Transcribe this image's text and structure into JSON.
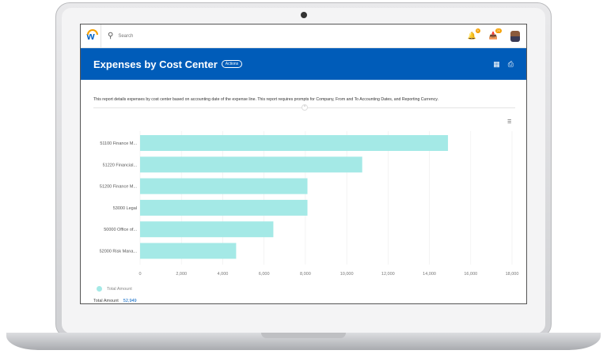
{
  "topbar": {
    "search_placeholder": "Search",
    "notification_count": "9",
    "inbox_count": "20"
  },
  "header": {
    "title": "Expenses by Cost Center",
    "actions_label": "Actions"
  },
  "description": "This report details expenses by cost center based on accounting date of the expense line. This report requires prompts for Company, From and To Accounting Dates, and Reporting Currency.",
  "totals": {
    "label": "Total Amount",
    "value": "52,949"
  },
  "chart_data": {
    "type": "bar",
    "orientation": "horizontal",
    "categories": [
      "51100 Finance M...",
      "51220 Financial...",
      "51200 Finance M...",
      "53000 Legal",
      "50000 Office of...",
      "52000 Risk Mana..."
    ],
    "series": [
      {
        "name": "Total Amount",
        "values": [
          14900,
          10750,
          8100,
          8100,
          6450,
          4649
        ],
        "color": "#a4e9e6"
      }
    ],
    "xlim": [
      0,
      18000
    ],
    "xticks": [
      "0",
      "2,000",
      "4,000",
      "6,000",
      "8,000",
      "10,000",
      "12,000",
      "14,000",
      "16,000",
      "18,000"
    ],
    "grid": true,
    "legend": "bottom-left"
  }
}
